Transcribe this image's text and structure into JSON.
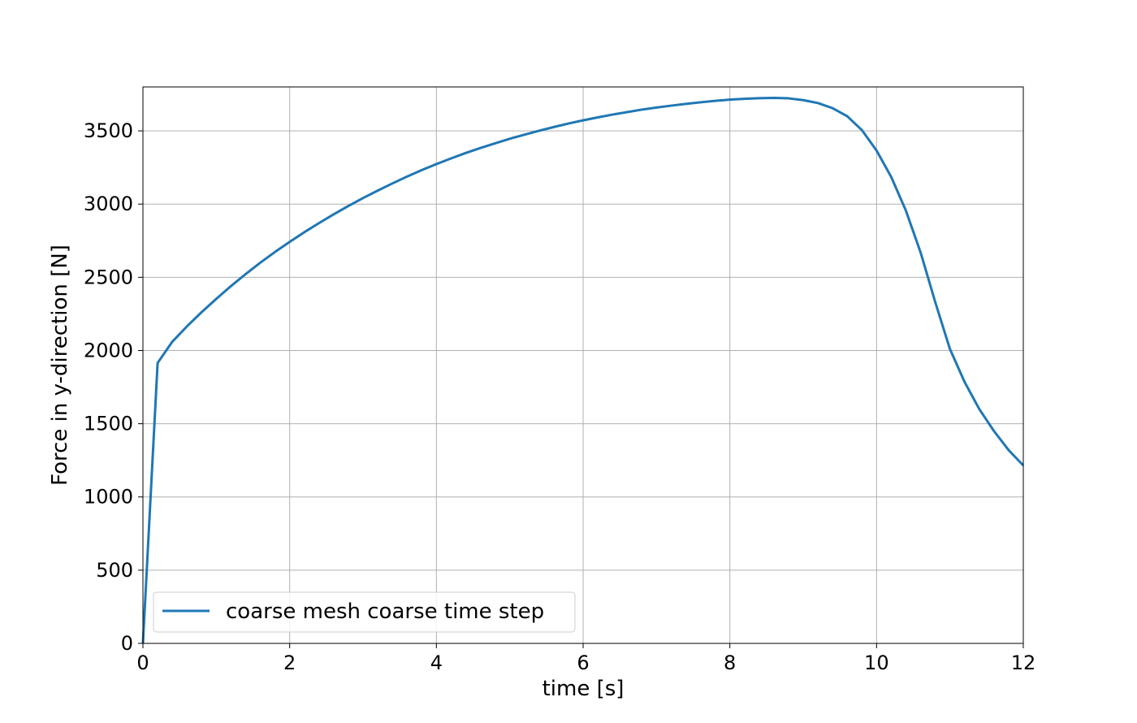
{
  "chart_data": {
    "type": "line",
    "xlabel": "time [s]",
    "ylabel": "Force in y-direction [N]",
    "xlim": [
      0,
      12
    ],
    "ylim": [
      0,
      3800
    ],
    "xticks": [
      0,
      2,
      4,
      6,
      8,
      10,
      12
    ],
    "yticks": [
      0,
      500,
      1000,
      1500,
      2000,
      2500,
      3000,
      3500
    ],
    "grid": true,
    "legend_position": "lower-left",
    "series": [
      {
        "name": "coarse mesh coarse time step",
        "color": "#1f77b4",
        "x": [
          0,
          0.2,
          0.4,
          0.6,
          0.8,
          1.0,
          1.2,
          1.4,
          1.6,
          1.8,
          2.0,
          2.2,
          2.4,
          2.6,
          2.8,
          3.0,
          3.2,
          3.4,
          3.6,
          3.8,
          4.0,
          4.2,
          4.4,
          4.6,
          4.8,
          5.0,
          5.2,
          5.4,
          5.6,
          5.8,
          6.0,
          6.2,
          6.4,
          6.6,
          6.8,
          7.0,
          7.2,
          7.4,
          7.6,
          7.8,
          8.0,
          8.2,
          8.4,
          8.6,
          8.8,
          9.0,
          9.2,
          9.4,
          9.6,
          9.8,
          10.0,
          10.2,
          10.4,
          10.6,
          10.8,
          11.0,
          11.2,
          11.4,
          11.6,
          11.8,
          12.0
        ],
        "y": [
          0,
          1915,
          2060,
          2165,
          2262,
          2353,
          2440,
          2522,
          2600,
          2673,
          2742,
          2808,
          2870,
          2930,
          2987,
          3041,
          3092,
          3141,
          3188,
          3232,
          3273,
          3312,
          3349,
          3383,
          3415,
          3446,
          3474,
          3501,
          3526,
          3550,
          3572,
          3592,
          3611,
          3628,
          3645,
          3659,
          3672,
          3684,
          3695,
          3705,
          3713,
          3719,
          3723,
          3725,
          3722,
          3710,
          3690,
          3655,
          3600,
          3505,
          3365,
          3185,
          2955,
          2670,
          2330,
          2010,
          1785,
          1600,
          1450,
          1320,
          1215
        ]
      }
    ]
  }
}
